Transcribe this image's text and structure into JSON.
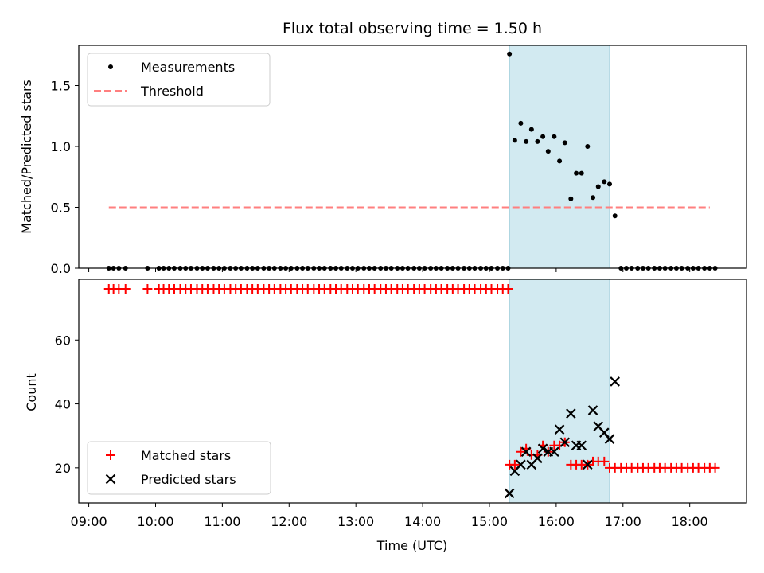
{
  "chart_data": [
    {
      "type": "scatter",
      "title": "Flux total observing time = 1.50 h",
      "ylabel": "Matched/Predicted stars",
      "xlabel": "",
      "x_unit": "hours UTC",
      "ylim": [
        0,
        1.83
      ],
      "yticks": [
        0.0,
        0.5,
        1.0,
        1.5
      ],
      "ytick_labels": [
        "0.0",
        "0.5",
        "1.0",
        "1.5"
      ],
      "highlight": {
        "x": [
          15.3,
          16.8
        ],
        "color": "#add8e6"
      },
      "legend": {
        "position": "upper left",
        "entries": [
          "Measurements",
          "Threshold"
        ]
      },
      "series": [
        {
          "name": "Measurements",
          "marker": "dot",
          "color": "#000000",
          "x": [
            9.3,
            9.37,
            9.45,
            9.55,
            9.88,
            10.05,
            10.12,
            10.2,
            10.28,
            10.37,
            10.45,
            10.53,
            10.62,
            10.7,
            10.78,
            10.87,
            10.95,
            11.03,
            11.12,
            11.2,
            11.28,
            11.37,
            11.45,
            11.53,
            11.62,
            11.7,
            11.78,
            11.87,
            11.95,
            12.03,
            12.12,
            12.2,
            12.28,
            12.37,
            12.45,
            12.53,
            12.62,
            12.7,
            12.78,
            12.87,
            12.95,
            13.03,
            13.12,
            13.2,
            13.28,
            13.37,
            13.45,
            13.53,
            13.62,
            13.7,
            13.78,
            13.87,
            13.95,
            14.03,
            14.12,
            14.2,
            14.28,
            14.37,
            14.45,
            14.53,
            14.62,
            14.7,
            14.78,
            14.87,
            14.95,
            15.03,
            15.12,
            15.2,
            15.28,
            15.3,
            15.38,
            15.47,
            15.55,
            15.63,
            15.72,
            15.8,
            15.88,
            15.97,
            16.05,
            16.13,
            16.22,
            16.3,
            16.38,
            16.47,
            16.55,
            16.63,
            16.72,
            16.8,
            16.88,
            16.97,
            17.05,
            17.13,
            17.22,
            17.3,
            17.38,
            17.47,
            17.55,
            17.63,
            17.72,
            17.8,
            17.88,
            17.97,
            18.05,
            18.13,
            18.22,
            18.3,
            18.38
          ],
          "y": [
            0,
            0,
            0,
            0,
            0,
            0,
            0,
            0,
            0,
            0,
            0,
            0,
            0,
            0,
            0,
            0,
            0,
            0,
            0,
            0,
            0,
            0,
            0,
            0,
            0,
            0,
            0,
            0,
            0,
            0,
            0,
            0,
            0,
            0,
            0,
            0,
            0,
            0,
            0,
            0,
            0,
            0,
            0,
            0,
            0,
            0,
            0,
            0,
            0,
            0,
            0,
            0,
            0,
            0,
            0,
            0,
            0,
            0,
            0,
            0,
            0,
            0,
            0,
            0,
            0,
            0,
            0,
            0,
            0,
            1.76,
            1.05,
            1.19,
            1.04,
            1.14,
            1.04,
            1.08,
            0.96,
            1.08,
            0.88,
            1.03,
            0.57,
            0.78,
            0.78,
            1.0,
            0.58,
            0.67,
            0.71,
            0.69,
            0.43,
            0,
            0,
            0,
            0,
            0,
            0,
            0,
            0,
            0,
            0,
            0,
            0,
            0,
            0,
            0,
            0,
            0,
            0
          ]
        },
        {
          "name": "Threshold",
          "type": "line",
          "dash": "dashed",
          "color": "#ff7f7f",
          "x": [
            9.3,
            18.3
          ],
          "y": [
            0.5,
            0.5
          ]
        }
      ]
    },
    {
      "type": "scatter",
      "title": "",
      "ylabel": "Count",
      "xlabel": "Time (UTC)",
      "x_unit": "hours UTC",
      "ylim": [
        9,
        79
      ],
      "yticks": [
        20,
        40,
        60
      ],
      "ytick_labels": [
        "20",
        "40",
        "60"
      ],
      "xlim": [
        8.85,
        18.85
      ],
      "xticks": [
        9,
        10,
        11,
        12,
        13,
        14,
        15,
        16,
        17,
        18
      ],
      "xtick_labels": [
        "09:00",
        "10:00",
        "11:00",
        "12:00",
        "13:00",
        "14:00",
        "15:00",
        "16:00",
        "17:00",
        "18:00"
      ],
      "highlight": {
        "x": [
          15.3,
          16.8
        ],
        "color": "#add8e6"
      },
      "legend": {
        "position": "lower left",
        "entries": [
          "Matched stars",
          "Predicted stars"
        ]
      },
      "series": [
        {
          "name": "Matched stars",
          "marker": "plus",
          "color": "#ff0000",
          "x": [
            9.3,
            9.37,
            9.45,
            9.55,
            9.88,
            10.05,
            10.12,
            10.2,
            10.28,
            10.37,
            10.45,
            10.53,
            10.62,
            10.7,
            10.78,
            10.87,
            10.95,
            11.03,
            11.12,
            11.2,
            11.28,
            11.37,
            11.45,
            11.53,
            11.62,
            11.7,
            11.78,
            11.87,
            11.95,
            12.03,
            12.12,
            12.2,
            12.28,
            12.37,
            12.45,
            12.53,
            12.62,
            12.7,
            12.78,
            12.87,
            12.95,
            13.03,
            13.12,
            13.2,
            13.28,
            13.37,
            13.45,
            13.53,
            13.62,
            13.7,
            13.78,
            13.87,
            13.95,
            14.03,
            14.12,
            14.2,
            14.28,
            14.37,
            14.45,
            14.53,
            14.62,
            14.7,
            14.78,
            14.87,
            14.95,
            15.03,
            15.12,
            15.2,
            15.28,
            15.3,
            15.38,
            15.47,
            15.55,
            15.63,
            15.72,
            15.8,
            15.88,
            15.97,
            16.05,
            16.13,
            16.22,
            16.3,
            16.38,
            16.47,
            16.55,
            16.63,
            16.72,
            16.8,
            16.88,
            16.97,
            17.05,
            17.13,
            17.22,
            17.3,
            17.38,
            17.47,
            17.55,
            17.63,
            17.72,
            17.8,
            17.88,
            17.97,
            18.05,
            18.13,
            18.22,
            18.3,
            18.38
          ],
          "y": [
            76,
            76,
            76,
            76,
            76,
            76,
            76,
            76,
            76,
            76,
            76,
            76,
            76,
            76,
            76,
            76,
            76,
            76,
            76,
            76,
            76,
            76,
            76,
            76,
            76,
            76,
            76,
            76,
            76,
            76,
            76,
            76,
            76,
            76,
            76,
            76,
            76,
            76,
            76,
            76,
            76,
            76,
            76,
            76,
            76,
            76,
            76,
            76,
            76,
            76,
            76,
            76,
            76,
            76,
            76,
            76,
            76,
            76,
            76,
            76,
            76,
            76,
            76,
            76,
            76,
            76,
            76,
            76,
            76,
            21,
            21,
            25,
            26,
            24,
            24,
            27,
            25,
            27,
            27,
            28,
            21,
            21,
            21,
            21,
            22,
            22,
            22,
            20,
            20,
            20,
            20,
            20,
            20,
            20,
            20,
            20,
            20,
            20,
            20,
            20,
            20,
            20,
            20,
            20,
            20,
            20,
            20
          ]
        },
        {
          "name": "Predicted stars",
          "marker": "x",
          "color": "#000000",
          "x": [
            15.3,
            15.38,
            15.47,
            15.55,
            15.63,
            15.72,
            15.8,
            15.88,
            15.97,
            16.05,
            16.13,
            16.22,
            16.3,
            16.38,
            16.47,
            16.55,
            16.63,
            16.72,
            16.8,
            16.88
          ],
          "y": [
            12,
            19,
            21,
            25,
            21,
            23,
            26,
            25,
            25,
            32,
            28,
            37,
            27,
            27,
            21,
            38,
            33,
            31,
            29,
            47
          ]
        }
      ]
    }
  ]
}
